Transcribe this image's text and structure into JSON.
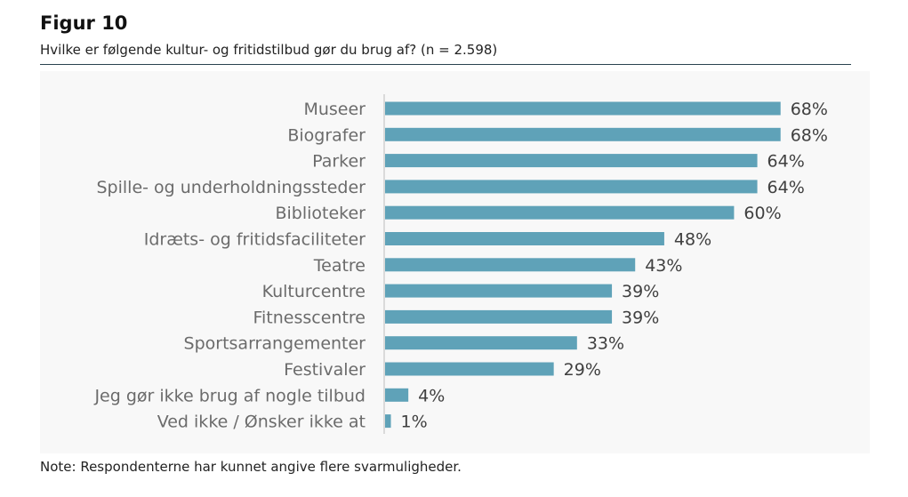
{
  "figure": {
    "title": "Figur 10",
    "subtitle": "Hvilke er følgende kultur- og fritidstilbud gør du brug af? (n = 2.598)",
    "note": "Note: Respondenterne har kunnet angive flere svarmuligheder."
  },
  "colors": {
    "bar": "#5fa2b8",
    "axis": "#cfcfcf",
    "rule": "#2b4450"
  },
  "chart_data": {
    "type": "bar",
    "orientation": "horizontal",
    "categories": [
      "Museer",
      "Biografer",
      "Parker",
      "Spille- og underholdningssteder",
      "Biblioteker",
      "Idræts- og fritidsfaciliteter",
      "Teatre",
      "Kulturcentre",
      "Fitnesscentre",
      "Sportsarrangementer",
      "Festivaler",
      "Jeg gør ikke brug af nogle tilbud",
      "Ved ikke / Ønsker ikke at"
    ],
    "values": [
      68,
      68,
      64,
      64,
      60,
      48,
      43,
      39,
      39,
      33,
      29,
      4,
      1
    ],
    "value_labels": [
      "68%",
      "68%",
      "64%",
      "64%",
      "60%",
      "48%",
      "43%",
      "39%",
      "39%",
      "33%",
      "29%",
      "4%",
      "1%"
    ],
    "unit": "%",
    "xlim": [
      0,
      100
    ],
    "grid": false,
    "legend": "none"
  }
}
